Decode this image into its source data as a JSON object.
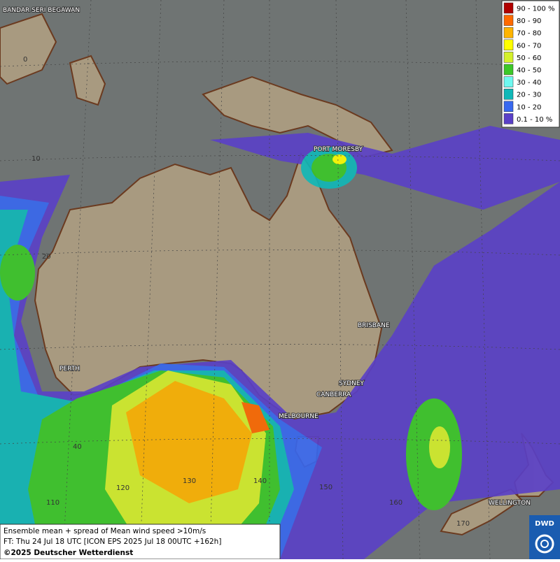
{
  "legend": [
    {
      "label": "90 - 100 %",
      "color": "#b00000"
    },
    {
      "label": "80 - 90",
      "color": "#ff6a00"
    },
    {
      "label": "70 - 80",
      "color": "#ffb400"
    },
    {
      "label": "60 - 70",
      "color": "#ffff00"
    },
    {
      "label": "50 - 60",
      "color": "#d4f02a"
    },
    {
      "label": "40 - 50",
      "color": "#3cc828"
    },
    {
      "label": "30 - 40",
      "color": "#6ef8f0"
    },
    {
      "label": "20 - 30",
      "color": "#10b8b8"
    },
    {
      "label": "10 - 20",
      "color": "#3868f0"
    },
    {
      "label": "0.1 - 10 %",
      "color": "#5a40c8"
    }
  ],
  "cities": [
    "BANDAR SERI BEGAWAN",
    "PORT MORESBY",
    "BRISBANE",
    "PERTH",
    "SYDNEY",
    "CANBERRA",
    "MELBOURNE",
    "WELLINGTON"
  ],
  "grid_labels": [
    "0",
    "10",
    "20",
    "40",
    "110",
    "120",
    "130",
    "140",
    "150",
    "160",
    "170"
  ],
  "caption": {
    "line1": "Ensemble mean + spread of Mean wind speed >10m/s",
    "line2": "FT: Thu 24 Jul 18 UTC [ICON EPS 2025 Jul 18 00UTC +162h]",
    "line3": "©2025 Deutscher Wetterdienst"
  },
  "logo": "DWD"
}
